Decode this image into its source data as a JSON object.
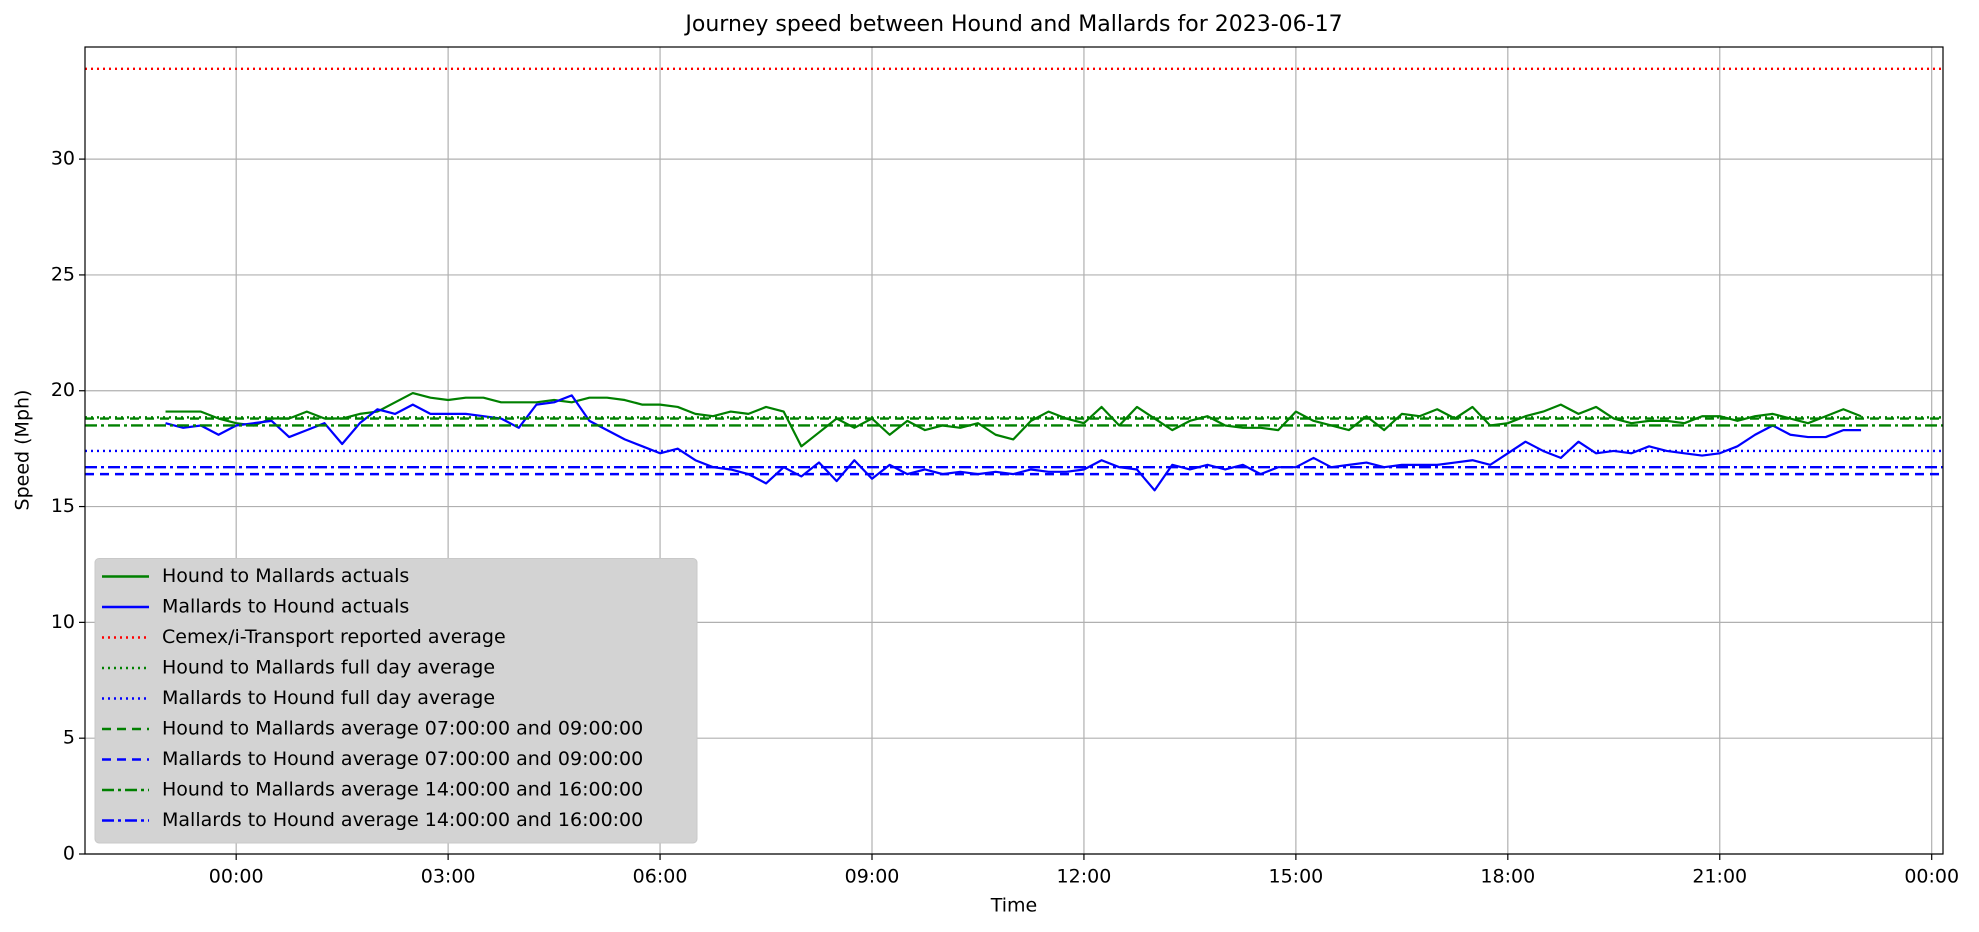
{
  "chart_data": {
    "type": "line",
    "title": "Journey speed between Hound and Mallards for 2023-06-17",
    "x_label": "Time",
    "y_label": "Speed  (Mph)",
    "xlim": [
      -2.14,
      24.16
    ],
    "ylim": [
      0,
      34.84
    ],
    "xticks": [
      {
        "value": 0,
        "label": "00:00"
      },
      {
        "value": 3,
        "label": "03:00"
      },
      {
        "value": 6,
        "label": "06:00"
      },
      {
        "value": 9,
        "label": "09:00"
      },
      {
        "value": 12,
        "label": "12:00"
      },
      {
        "value": 15,
        "label": "15:00"
      },
      {
        "value": 18,
        "label": "18:00"
      },
      {
        "value": 21,
        "label": "21:00"
      },
      {
        "value": 24,
        "label": "00:00"
      }
    ],
    "yticks": [
      0,
      5,
      10,
      15,
      20,
      25,
      30
    ],
    "grid": true,
    "legend": "lower left",
    "x": [
      -1,
      -0.75,
      -0.5,
      -0.25,
      0,
      0.25,
      0.5,
      0.75,
      1,
      1.25,
      1.5,
      1.75,
      2,
      2.25,
      2.5,
      2.75,
      3,
      3.25,
      3.5,
      3.75,
      4,
      4.25,
      4.5,
      4.75,
      5,
      5.25,
      5.5,
      5.75,
      6,
      6.25,
      6.5,
      6.75,
      7,
      7.25,
      7.5,
      7.75,
      8,
      8.25,
      8.5,
      8.75,
      9,
      9.25,
      9.5,
      9.75,
      10,
      10.25,
      10.5,
      10.75,
      11,
      11.25,
      11.5,
      11.75,
      12,
      12.25,
      12.5,
      12.75,
      13,
      13.25,
      13.5,
      13.75,
      14,
      14.25,
      14.5,
      14.75,
      15,
      15.25,
      15.5,
      15.75,
      16,
      16.25,
      16.5,
      16.75,
      17,
      17.25,
      17.5,
      17.75,
      18,
      18.25,
      18.5,
      18.75,
      19,
      19.25,
      19.5,
      19.75,
      20,
      20.25,
      20.5,
      20.75,
      21,
      21.25,
      21.5,
      21.75,
      22,
      22.25,
      22.5,
      22.75,
      23
    ],
    "series": [
      {
        "name": "Hound to Mallards actuals",
        "color": "#008000",
        "values": [
          19.1,
          19.1,
          19.1,
          18.8,
          18.6,
          18.5,
          18.8,
          18.8,
          19.1,
          18.8,
          18.8,
          19.0,
          19.1,
          19.5,
          19.9,
          19.7,
          19.6,
          19.7,
          19.7,
          19.5,
          19.5,
          19.5,
          19.6,
          19.5,
          19.7,
          19.7,
          19.6,
          19.4,
          19.4,
          19.3,
          19.0,
          18.9,
          19.1,
          19.0,
          19.3,
          19.1,
          17.6,
          18.2,
          18.8,
          18.4,
          18.8,
          18.1,
          18.7,
          18.3,
          18.5,
          18.4,
          18.6,
          18.1,
          17.9,
          18.7,
          19.1,
          18.8,
          18.6,
          19.3,
          18.5,
          19.3,
          18.8,
          18.3,
          18.7,
          18.9,
          18.5,
          18.4,
          18.4,
          18.3,
          19.1,
          18.7,
          18.5,
          18.3,
          18.9,
          18.3,
          19.0,
          18.9,
          19.2,
          18.8,
          19.3,
          18.5,
          18.6,
          18.9,
          19.1,
          19.4,
          19.0,
          19.3,
          18.8,
          18.6,
          18.7,
          18.7,
          18.6,
          18.9,
          18.9,
          18.7,
          18.9,
          19.0,
          18.8,
          18.6,
          18.9,
          19.2,
          18.9
        ]
      },
      {
        "name": "Mallards to Hound actuals",
        "color": "#0000ff",
        "values": [
          18.6,
          18.4,
          18.5,
          18.1,
          18.5,
          18.6,
          18.7,
          18.0,
          18.3,
          18.6,
          17.7,
          18.6,
          19.2,
          19.0,
          19.4,
          19.0,
          19.0,
          19.0,
          18.9,
          18.8,
          18.4,
          19.4,
          19.5,
          19.8,
          18.7,
          18.3,
          17.9,
          17.6,
          17.3,
          17.5,
          17.0,
          16.7,
          16.6,
          16.4,
          16.0,
          16.7,
          16.3,
          16.9,
          16.1,
          17.0,
          16.2,
          16.8,
          16.4,
          16.6,
          16.4,
          16.5,
          16.4,
          16.5,
          16.4,
          16.6,
          16.5,
          16.5,
          16.6,
          17.0,
          16.7,
          16.6,
          15.7,
          16.8,
          16.6,
          16.8,
          16.6,
          16.8,
          16.4,
          16.7,
          16.7,
          17.1,
          16.7,
          16.8,
          16.9,
          16.7,
          16.8,
          16.8,
          16.8,
          16.9,
          17.0,
          16.8,
          17.3,
          17.8,
          17.4,
          17.1,
          17.8,
          17.3,
          17.4,
          17.3,
          17.6,
          17.4,
          17.3,
          17.2,
          17.3,
          17.6,
          18.1,
          18.5,
          18.1,
          18.0,
          18.0,
          18.3,
          18.3
        ]
      }
    ],
    "reference_lines": [
      {
        "name": "Cemex/i-Transport reported average",
        "color": "#ff0000",
        "style": "dotted",
        "value": 33.9
      },
      {
        "name": "Hound to Mallards full day average",
        "color": "#008000",
        "style": "dotted",
        "value": 18.85
      },
      {
        "name": "Mallards to Hound full day average",
        "color": "#0000ff",
        "style": "dotted",
        "value": 17.4
      },
      {
        "name": "Hound to Mallards average 07:00:00 and 09:00:00",
        "color": "#008000",
        "style": "dashed",
        "value": 18.8
      },
      {
        "name": "Mallards to Hound average 07:00:00 and 09:00:00",
        "color": "#0000ff",
        "style": "dashed",
        "value": 16.4
      },
      {
        "name": "Hound to Mallards average 14:00:00 and 16:00:00",
        "color": "#008000",
        "style": "dashdot",
        "value": 18.5
      },
      {
        "name": "Mallards to Hound average 14:00:00 and 16:00:00",
        "color": "#0000ff",
        "style": "dashdot",
        "value": 16.7
      }
    ]
  }
}
